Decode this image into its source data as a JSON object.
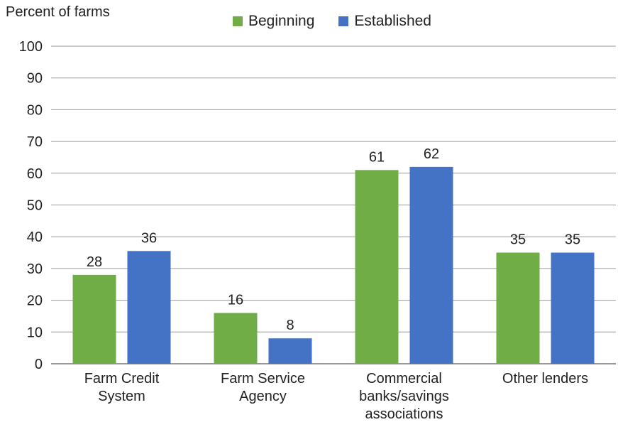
{
  "chart_data": {
    "type": "bar",
    "ylabel": "Percent of farms",
    "xlabel": "",
    "ylim": [
      0,
      100
    ],
    "yticks": [
      0,
      10,
      20,
      30,
      40,
      50,
      60,
      70,
      80,
      90,
      100
    ],
    "grid": true,
    "legend_position": "top-center",
    "categories": [
      [
        "Farm Credit",
        "System"
      ],
      [
        "Farm Service",
        "Agency"
      ],
      [
        "Commercial",
        "banks/savings",
        "associations"
      ],
      [
        "Other lenders"
      ]
    ],
    "series": [
      {
        "name": "Beginning",
        "color": "#70ad47",
        "values": [
          28,
          16,
          61,
          35
        ],
        "labels": [
          "28",
          "16",
          "61",
          "35"
        ]
      },
      {
        "name": "Established",
        "color": "#4472c4",
        "values": [
          35.5,
          8,
          62,
          35
        ],
        "labels": [
          "36",
          "8",
          "62",
          "35"
        ]
      }
    ]
  }
}
